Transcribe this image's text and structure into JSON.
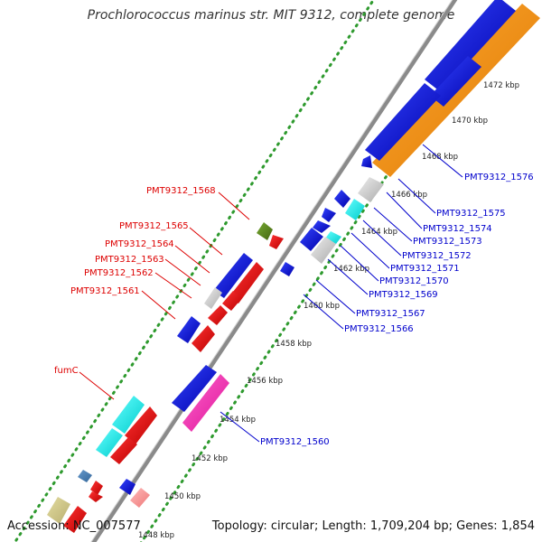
{
  "title": "Prochlorococcus marinus str. MIT 9312, complete genome",
  "accession": "Accession: NC_007577",
  "topology": "Topology: circular; Length: 1,709,204 bp; Genes: 1,854",
  "colors": {
    "backbone": "#8a8a8a",
    "dots": "#2e9a2e",
    "label_red": "#dd0000",
    "label_blue": "#0000cc"
  },
  "scale_ticks": [
    "1472 kbp",
    "1470 kbp",
    "1468 kbp",
    "1466 kbp",
    "1464 kbp",
    "1462 kbp",
    "1460 kbp",
    "1458 kbp",
    "1456 kbp",
    "1454 kbp",
    "1452 kbp",
    "1450 kbp",
    "1448 kbp"
  ],
  "left_labels": [
    "PMT9312_1568",
    "PMT9312_1565",
    "PMT9312_1564",
    "PMT9312_1563",
    "PMT9312_1562",
    "PMT9312_1561",
    "fumC"
  ],
  "right_labels": [
    "PMT9312_1576",
    "PMT9312_1575",
    "PMT9312_1574",
    "PMT9312_1573",
    "PMT9312_1572",
    "PMT9312_1571",
    "PMT9312_1570",
    "PMT9312_1569",
    "PMT9312_1567",
    "PMT9312_1566",
    "PMT9312_1560"
  ]
}
